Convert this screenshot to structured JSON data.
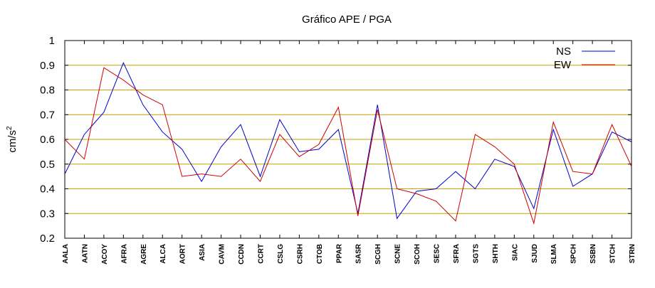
{
  "chart_data": {
    "type": "line",
    "title": "Gráfico  APE / PGA",
    "ylabel": "cm/s",
    "ylabel_superscript": "2",
    "xlabel": "",
    "ylim": [
      0.2,
      1.0
    ],
    "yticks": [
      0.2,
      0.3,
      0.4,
      0.5,
      0.6,
      0.7,
      0.8,
      0.9,
      1.0
    ],
    "ytick_labels": [
      "0.2",
      "0.3",
      "0.4",
      "0.5",
      "0.6",
      "0.7",
      "0.8",
      "0.9",
      "1"
    ],
    "grid": "horizontal",
    "legend_position": "top-right",
    "categories": [
      "AALA",
      "AATN",
      "ACOY",
      "AFRA",
      "AGRE",
      "ALCA",
      "AORT",
      "ASIA",
      "CAVM",
      "CCDN",
      "CCRT",
      "CSLG",
      "CSRH",
      "CTOB",
      "PPAR",
      "SASR",
      "SCGH",
      "SCNE",
      "SCOH",
      "SESC",
      "SFRA",
      "SGTS",
      "SHTH",
      "SIAC",
      "SJUD",
      "SLMA",
      "SPCH",
      "SSBN",
      "STCH",
      "STRN"
    ],
    "series": [
      {
        "name": "NS",
        "color": "#0000cc",
        "values": [
          0.46,
          0.62,
          0.71,
          0.91,
          0.74,
          0.63,
          0.56,
          0.43,
          0.57,
          0.66,
          0.45,
          0.68,
          0.55,
          0.56,
          0.64,
          0.3,
          0.74,
          0.28,
          0.39,
          0.4,
          0.47,
          0.4,
          0.52,
          0.49,
          0.32,
          0.64,
          0.41,
          0.46,
          0.63,
          0.59
        ]
      },
      {
        "name": "EW",
        "color": "#cc0000",
        "values": [
          0.6,
          0.52,
          0.89,
          0.84,
          0.78,
          0.74,
          0.45,
          0.46,
          0.45,
          0.52,
          0.43,
          0.62,
          0.53,
          0.58,
          0.73,
          0.29,
          0.72,
          0.4,
          0.38,
          0.35,
          0.27,
          0.62,
          0.57,
          0.5,
          0.26,
          0.67,
          0.47,
          0.46,
          0.66,
          0.49
        ]
      }
    ]
  }
}
